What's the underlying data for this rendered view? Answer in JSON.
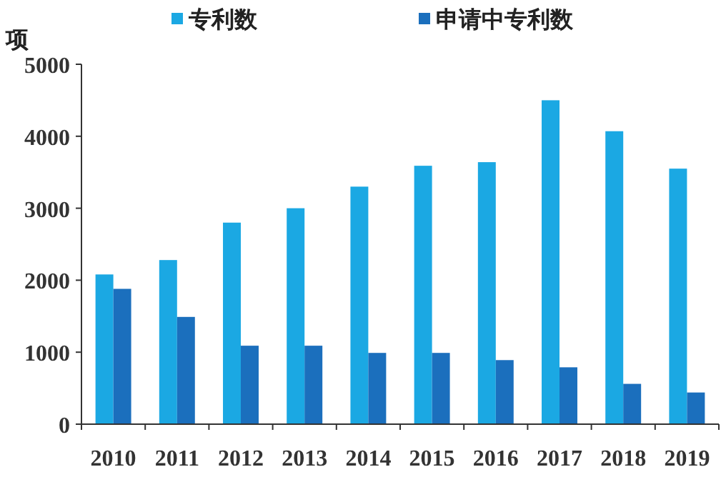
{
  "chart_data": {
    "type": "bar",
    "ylabel": "项",
    "categories": [
      "2010",
      "2011",
      "2012",
      "2013",
      "2014",
      "2015",
      "2016",
      "2017",
      "2018",
      "2019"
    ],
    "series": [
      {
        "name": "专利数",
        "color": "#1ba8e3",
        "values": [
          2080,
          2280,
          2800,
          3000,
          3300,
          3590,
          3640,
          4500,
          4070,
          3550
        ]
      },
      {
        "name": "申请中专利数",
        "color": "#1b6fbd",
        "values": [
          1880,
          1490,
          1090,
          1090,
          990,
          990,
          890,
          790,
          560,
          440
        ]
      }
    ],
    "ylim": [
      0,
      5000
    ],
    "yticks": [
      0,
      1000,
      2000,
      3000,
      4000,
      5000
    ],
    "grid": false,
    "legend": "top"
  }
}
